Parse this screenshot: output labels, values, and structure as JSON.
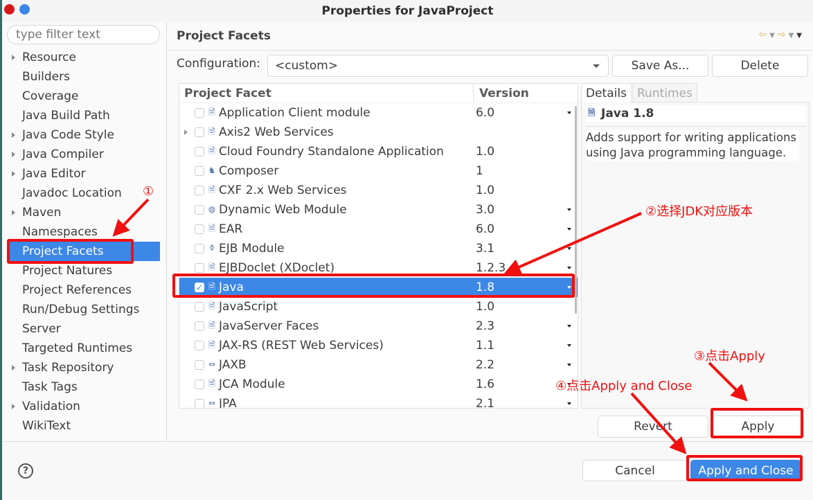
{
  "window": {
    "title": "Properties for JavaProject",
    "close_color": "#d8191a",
    "max_color": "#3d87e6"
  },
  "sidebar": {
    "filter_placeholder": "type filter text",
    "items": [
      {
        "label": "Resource",
        "expandable": true
      },
      {
        "label": "Builders"
      },
      {
        "label": "Coverage"
      },
      {
        "label": "Java Build Path"
      },
      {
        "label": "Java Code Style",
        "expandable": true
      },
      {
        "label": "Java Compiler",
        "expandable": true
      },
      {
        "label": "Java Editor",
        "expandable": true
      },
      {
        "label": "Javadoc Location"
      },
      {
        "label": "Maven",
        "expandable": true
      },
      {
        "label": "Namespaces"
      },
      {
        "label": "Project Facets",
        "selected": true
      },
      {
        "label": "Project Natures"
      },
      {
        "label": "Project References"
      },
      {
        "label": "Run/Debug Settings"
      },
      {
        "label": "Server"
      },
      {
        "label": "Targeted Runtimes"
      },
      {
        "label": "Task Repository",
        "expandable": true
      },
      {
        "label": "Task Tags"
      },
      {
        "label": "Validation",
        "expandable": true
      },
      {
        "label": "WikiText"
      }
    ]
  },
  "main": {
    "title": "Project Facets",
    "nav_icons": [
      "back-arrow-icon",
      "forward-arrow-icon",
      "view-menu-icon"
    ],
    "configuration_label": "Configuration:",
    "configuration_value": "<custom>",
    "save_as": "Save As...",
    "delete": "Delete",
    "table": {
      "headers": [
        "Project Facet",
        "Version"
      ],
      "rows": [
        {
          "name": "Application Client module",
          "version": "6.0",
          "dropdown": true,
          "icon": "page-icon"
        },
        {
          "name": "Axis2 Web Services",
          "version": "",
          "expandable": true,
          "icon": "page-icon"
        },
        {
          "name": "Cloud Foundry Standalone Application",
          "version": "1.0",
          "icon": "page-icon"
        },
        {
          "name": "Composer",
          "version": "1",
          "icon": "composer-icon"
        },
        {
          "name": "CXF 2.x Web Services",
          "version": "1.0",
          "icon": "page-icon"
        },
        {
          "name": "Dynamic Web Module",
          "version": "3.0",
          "dropdown": true,
          "icon": "web-module-icon"
        },
        {
          "name": "EAR",
          "version": "6.0",
          "dropdown": true,
          "icon": "page-icon"
        },
        {
          "name": "EJB Module",
          "version": "3.1",
          "dropdown": true,
          "icon": "ejb-icon"
        },
        {
          "name": "EJBDoclet (XDoclet)",
          "version": "1.2.3",
          "dropdown": true,
          "icon": "page-icon"
        },
        {
          "name": "Java",
          "version": "1.8",
          "dropdown": true,
          "checked": true,
          "selected": true,
          "icon": "java-file-icon"
        },
        {
          "name": "JavaScript",
          "version": "1.0",
          "icon": "page-icon"
        },
        {
          "name": "JavaServer Faces",
          "version": "2.3",
          "dropdown": true,
          "icon": "page-icon"
        },
        {
          "name": "JAX-RS (REST Web Services)",
          "version": "1.1",
          "dropdown": true,
          "icon": "page-icon"
        },
        {
          "name": "JAXB",
          "version": "2.2",
          "dropdown": true,
          "icon": "jaxb-icon"
        },
        {
          "name": "JCA Module",
          "version": "1.6",
          "dropdown": true,
          "icon": "page-icon"
        },
        {
          "name": "JPA",
          "version": "2.1",
          "dropdown": true,
          "icon": "jpa-icon"
        }
      ]
    },
    "details": {
      "tabs": [
        "Details",
        "Runtimes"
      ],
      "title": "Java 1.8",
      "description": "Adds support for writing applications using Java programming language."
    },
    "revert": "Revert",
    "apply": "Apply"
  },
  "footer": {
    "help": "?",
    "cancel": "Cancel",
    "apply_close": "Apply and Close"
  },
  "annotations": {
    "color": "#f01010",
    "step1": "①",
    "step2": "②选择JDK对应版本",
    "step3": "③点击Apply",
    "step4": "④点击Apply and Close"
  }
}
